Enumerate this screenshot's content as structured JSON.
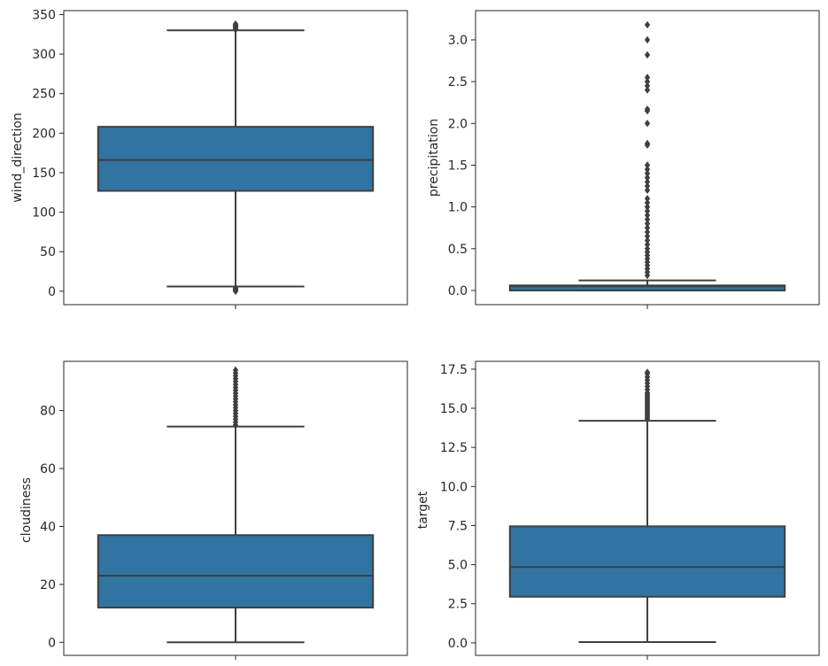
{
  "chart_data": [
    {
      "type": "box",
      "ylabel": "wind_direction",
      "ylim": [
        -17,
        355
      ],
      "yticks": [
        0,
        50,
        100,
        150,
        200,
        250,
        300,
        350
      ],
      "tick_labels": [
        "0",
        "50",
        "100",
        "150",
        "200",
        "250",
        "300",
        "350"
      ],
      "box": {
        "q1": 127,
        "median": 166,
        "q3": 208,
        "whisker_low": 6,
        "whisker_high": 330
      },
      "outliers": [
        0,
        1,
        2,
        3,
        4,
        331,
        332,
        333,
        334,
        335,
        336,
        337,
        338
      ],
      "color": "#3274a1"
    },
    {
      "type": "box",
      "ylabel": "precipitation",
      "ylim": [
        -0.17,
        3.35
      ],
      "yticks": [
        0.0,
        0.5,
        1.0,
        1.5,
        2.0,
        2.5,
        3.0
      ],
      "tick_labels": [
        "0.0",
        "0.5",
        "1.0",
        "1.5",
        "2.0",
        "2.5",
        "3.0"
      ],
      "box": {
        "q1": 0.0,
        "median": 0.05,
        "q3": 0.06,
        "whisker_low": 0.0,
        "whisker_high": 0.12
      },
      "outliers": [
        0.18,
        0.22,
        0.26,
        0.3,
        0.34,
        0.38,
        0.42,
        0.46,
        0.5,
        0.55,
        0.6,
        0.65,
        0.7,
        0.75,
        0.8,
        0.85,
        0.9,
        0.95,
        1.0,
        1.05,
        1.1,
        1.2,
        1.25,
        1.3,
        1.35,
        1.4,
        1.45,
        1.5,
        1.74,
        1.76,
        2.0,
        2.15,
        2.17,
        2.4,
        2.45,
        2.5,
        2.55,
        2.82,
        3.0,
        3.18
      ],
      "color": "#3274a1"
    },
    {
      "type": "box",
      "ylabel": "cloudiness",
      "ylim": [
        -4.5,
        97
      ],
      "yticks": [
        0,
        20,
        40,
        60,
        80
      ],
      "tick_labels": [
        "0",
        "20",
        "40",
        "60",
        "80"
      ],
      "box": {
        "q1": 12,
        "median": 23,
        "q3": 37,
        "whisker_low": 0,
        "whisker_high": 74.5
      },
      "outliers": [
        75,
        76,
        77,
        78,
        79,
        80,
        81,
        82,
        83,
        84,
        85,
        86,
        87,
        88,
        89,
        90,
        91,
        92,
        93,
        94
      ],
      "color": "#3274a1"
    },
    {
      "type": "box",
      "ylabel": "target",
      "ylim": [
        -0.8,
        18.0
      ],
      "yticks": [
        0.0,
        2.5,
        5.0,
        7.5,
        10.0,
        12.5,
        15.0,
        17.5
      ],
      "tick_labels": [
        "0.0",
        "2.5",
        "5.0",
        "7.5",
        "10.0",
        "12.5",
        "15.0",
        "17.5"
      ],
      "box": {
        "q1": 2.95,
        "median": 4.85,
        "q3": 7.45,
        "whisker_low": 0.05,
        "whisker_high": 14.2
      },
      "outliers": [
        14.3,
        14.4,
        14.5,
        14.6,
        14.7,
        14.8,
        14.9,
        15.0,
        15.1,
        15.2,
        15.3,
        15.4,
        15.5,
        15.6,
        15.7,
        15.8,
        15.9,
        16.0,
        16.2,
        16.4,
        16.6,
        16.8,
        17.0,
        17.2,
        17.3
      ],
      "color": "#3274a1"
    }
  ]
}
